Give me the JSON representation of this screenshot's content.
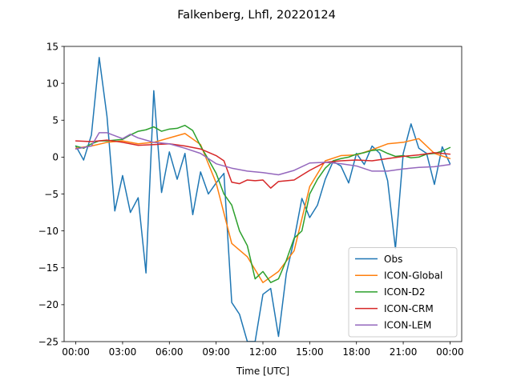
{
  "chart_data": {
    "type": "line",
    "title": "Falkenberg, Lhfl, 20220124",
    "xlabel": "Time [UTC]",
    "ylabel": "",
    "xlim": [
      -0.75,
      24.75
    ],
    "ylim": [
      -25,
      15
    ],
    "x_ticks": [
      {
        "value": 0,
        "label": "00:00"
      },
      {
        "value": 3,
        "label": "03:00"
      },
      {
        "value": 6,
        "label": "06:00"
      },
      {
        "value": 9,
        "label": "09:00"
      },
      {
        "value": 12,
        "label": "12:00"
      },
      {
        "value": 15,
        "label": "15:00"
      },
      {
        "value": 18,
        "label": "18:00"
      },
      {
        "value": 21,
        "label": "21:00"
      },
      {
        "value": 24,
        "label": "00:00"
      }
    ],
    "y_ticks": [
      {
        "value": 15,
        "label": "15"
      },
      {
        "value": 10,
        "label": "10"
      },
      {
        "value": 5,
        "label": "5"
      },
      {
        "value": 0,
        "label": "0"
      },
      {
        "value": -5,
        "label": "−5"
      },
      {
        "value": -10,
        "label": "−10"
      },
      {
        "value": -15,
        "label": "−15"
      },
      {
        "value": -20,
        "label": "−20"
      },
      {
        "value": -25,
        "label": "−25"
      }
    ],
    "legend_position": "lower-right",
    "series": [
      {
        "name": "Obs",
        "color": "#1f77b4",
        "points": [
          [
            0,
            1.5
          ],
          [
            0.5,
            -0.4
          ],
          [
            1,
            3
          ],
          [
            1.5,
            13.5
          ],
          [
            2,
            5.5
          ],
          [
            2.5,
            -7.3
          ],
          [
            3,
            -2.5
          ],
          [
            3.5,
            -7.5
          ],
          [
            4,
            -5.5
          ],
          [
            4.5,
            -15.7
          ],
          [
            5,
            9
          ],
          [
            5.5,
            -4.8
          ],
          [
            6,
            0.7
          ],
          [
            6.5,
            -3
          ],
          [
            7,
            0.5
          ],
          [
            7.5,
            -7.8
          ],
          [
            8,
            -2
          ],
          [
            8.5,
            -5
          ],
          [
            9,
            -3.5
          ],
          [
            9.5,
            -2.2
          ],
          [
            10,
            -19.7
          ],
          [
            10.5,
            -21.3
          ],
          [
            11,
            -25
          ],
          [
            11.5,
            -25
          ],
          [
            12,
            -18.6
          ],
          [
            12.5,
            -17.8
          ],
          [
            13,
            -24.3
          ],
          [
            13.5,
            -15.8
          ],
          [
            14,
            -11.2
          ],
          [
            14.5,
            -5.6
          ],
          [
            15,
            -8.2
          ],
          [
            15.5,
            -6.5
          ],
          [
            16,
            -3
          ],
          [
            16.5,
            -0.6
          ],
          [
            17,
            -1.2
          ],
          [
            17.5,
            -3.5
          ],
          [
            18,
            0.5
          ],
          [
            18.5,
            -1
          ],
          [
            19,
            1.5
          ],
          [
            19.5,
            0.5
          ],
          [
            20,
            -3.2
          ],
          [
            20.5,
            -12.4
          ],
          [
            21,
            0.5
          ],
          [
            21.5,
            4.5
          ],
          [
            22,
            1.2
          ],
          [
            22.5,
            0.5
          ],
          [
            23,
            -3.7
          ],
          [
            23.5,
            1.4
          ],
          [
            24,
            -0.9
          ]
        ]
      },
      {
        "name": "ICON-Global",
        "color": "#ff7f0e",
        "points": [
          [
            0,
            1.2
          ],
          [
            1,
            1.5
          ],
          [
            2,
            2
          ],
          [
            3,
            2.2
          ],
          [
            4,
            1.8
          ],
          [
            5,
            2
          ],
          [
            6,
            2.6
          ],
          [
            7,
            3.2
          ],
          [
            8,
            1.7
          ],
          [
            9,
            -3.5
          ],
          [
            10,
            -11.7
          ],
          [
            11,
            -13.5
          ],
          [
            12,
            -17
          ],
          [
            13,
            -15.5
          ],
          [
            14,
            -12.7
          ],
          [
            15,
            -4
          ],
          [
            16,
            -0.5
          ],
          [
            17,
            0.2
          ],
          [
            18,
            0.3
          ],
          [
            19,
            1
          ],
          [
            20,
            1.8
          ],
          [
            21,
            2
          ],
          [
            22,
            2.5
          ],
          [
            23,
            0.5
          ],
          [
            24,
            -0.2
          ]
        ]
      },
      {
        "name": "ICON-D2",
        "color": "#2ca02c",
        "points": [
          [
            0,
            1.5
          ],
          [
            0.5,
            1.2
          ],
          [
            1,
            1.8
          ],
          [
            1.5,
            2.2
          ],
          [
            2,
            2.2
          ],
          [
            2.5,
            2.3
          ],
          [
            3,
            2.4
          ],
          [
            3.5,
            3
          ],
          [
            4,
            3.5
          ],
          [
            4.5,
            3.7
          ],
          [
            5,
            4.1
          ],
          [
            5.5,
            3.5
          ],
          [
            6,
            3.8
          ],
          [
            6.5,
            3.9
          ],
          [
            7,
            4.3
          ],
          [
            7.5,
            3.6
          ],
          [
            8,
            1.5
          ],
          [
            8.5,
            -0.3
          ],
          [
            9,
            -2.2
          ],
          [
            9.5,
            -5
          ],
          [
            10,
            -6.5
          ],
          [
            10.5,
            -10
          ],
          [
            11,
            -12
          ],
          [
            11.5,
            -16.5
          ],
          [
            12,
            -15.5
          ],
          [
            12.5,
            -17
          ],
          [
            13,
            -16.5
          ],
          [
            13.5,
            -14
          ],
          [
            14,
            -11
          ],
          [
            14.5,
            -10
          ],
          [
            15,
            -5
          ],
          [
            15.5,
            -3
          ],
          [
            16,
            -1.5
          ],
          [
            16.5,
            -0.5
          ],
          [
            17,
            -0.2
          ],
          [
            17.5,
            0
          ],
          [
            18,
            0.4
          ],
          [
            18.5,
            0.6
          ],
          [
            19,
            0.9
          ],
          [
            19.5,
            1
          ],
          [
            20,
            0.5
          ],
          [
            20.5,
            0.1
          ],
          [
            21,
            0.2
          ],
          [
            21.5,
            -0.1
          ],
          [
            22,
            0
          ],
          [
            22.5,
            0.4
          ],
          [
            23,
            0.5
          ],
          [
            23.5,
            0.8
          ],
          [
            24,
            1.3
          ]
        ]
      },
      {
        "name": "ICON-CRM",
        "color": "#d62728",
        "points": [
          [
            0,
            2.2
          ],
          [
            1,
            2.1
          ],
          [
            2,
            2.3
          ],
          [
            3,
            2
          ],
          [
            4,
            1.6
          ],
          [
            5,
            1.7
          ],
          [
            6,
            1.8
          ],
          [
            7,
            1.5
          ],
          [
            8,
            1.1
          ],
          [
            9,
            0.2
          ],
          [
            9.5,
            -0.5
          ],
          [
            10,
            -3.4
          ],
          [
            10.5,
            -3.6
          ],
          [
            11,
            -3.1
          ],
          [
            11.5,
            -3.2
          ],
          [
            12,
            -3.1
          ],
          [
            12.5,
            -4.2
          ],
          [
            13,
            -3.3
          ],
          [
            14,
            -3.1
          ],
          [
            15,
            -1.8
          ],
          [
            16,
            -0.7
          ],
          [
            17,
            -0.5
          ],
          [
            18,
            -0.4
          ],
          [
            19,
            -0.5
          ],
          [
            20,
            -0.2
          ],
          [
            21,
            0.1
          ],
          [
            22,
            0.3
          ],
          [
            23,
            0.6
          ],
          [
            24,
            0.4
          ]
        ]
      },
      {
        "name": "ICON-LEM",
        "color": "#9467bd",
        "points": [
          [
            0,
            1.1
          ],
          [
            1,
            1.5
          ],
          [
            1.5,
            3.3
          ],
          [
            2,
            3.3
          ],
          [
            3,
            2.5
          ],
          [
            3.5,
            3.1
          ],
          [
            4,
            2.6
          ],
          [
            5,
            2
          ],
          [
            6,
            1.8
          ],
          [
            7,
            1.2
          ],
          [
            8,
            0.5
          ],
          [
            9,
            -0.9
          ],
          [
            10,
            -1.5
          ],
          [
            11,
            -1.9
          ],
          [
            12,
            -2.1
          ],
          [
            13,
            -2.4
          ],
          [
            14,
            -1.8
          ],
          [
            15,
            -0.8
          ],
          [
            16,
            -0.7
          ],
          [
            17,
            -0.9
          ],
          [
            18,
            -1.2
          ],
          [
            19,
            -1.9
          ],
          [
            20,
            -1.9
          ],
          [
            21,
            -1.6
          ],
          [
            22,
            -1.4
          ],
          [
            23,
            -1.3
          ],
          [
            24,
            -1
          ]
        ]
      }
    ]
  }
}
